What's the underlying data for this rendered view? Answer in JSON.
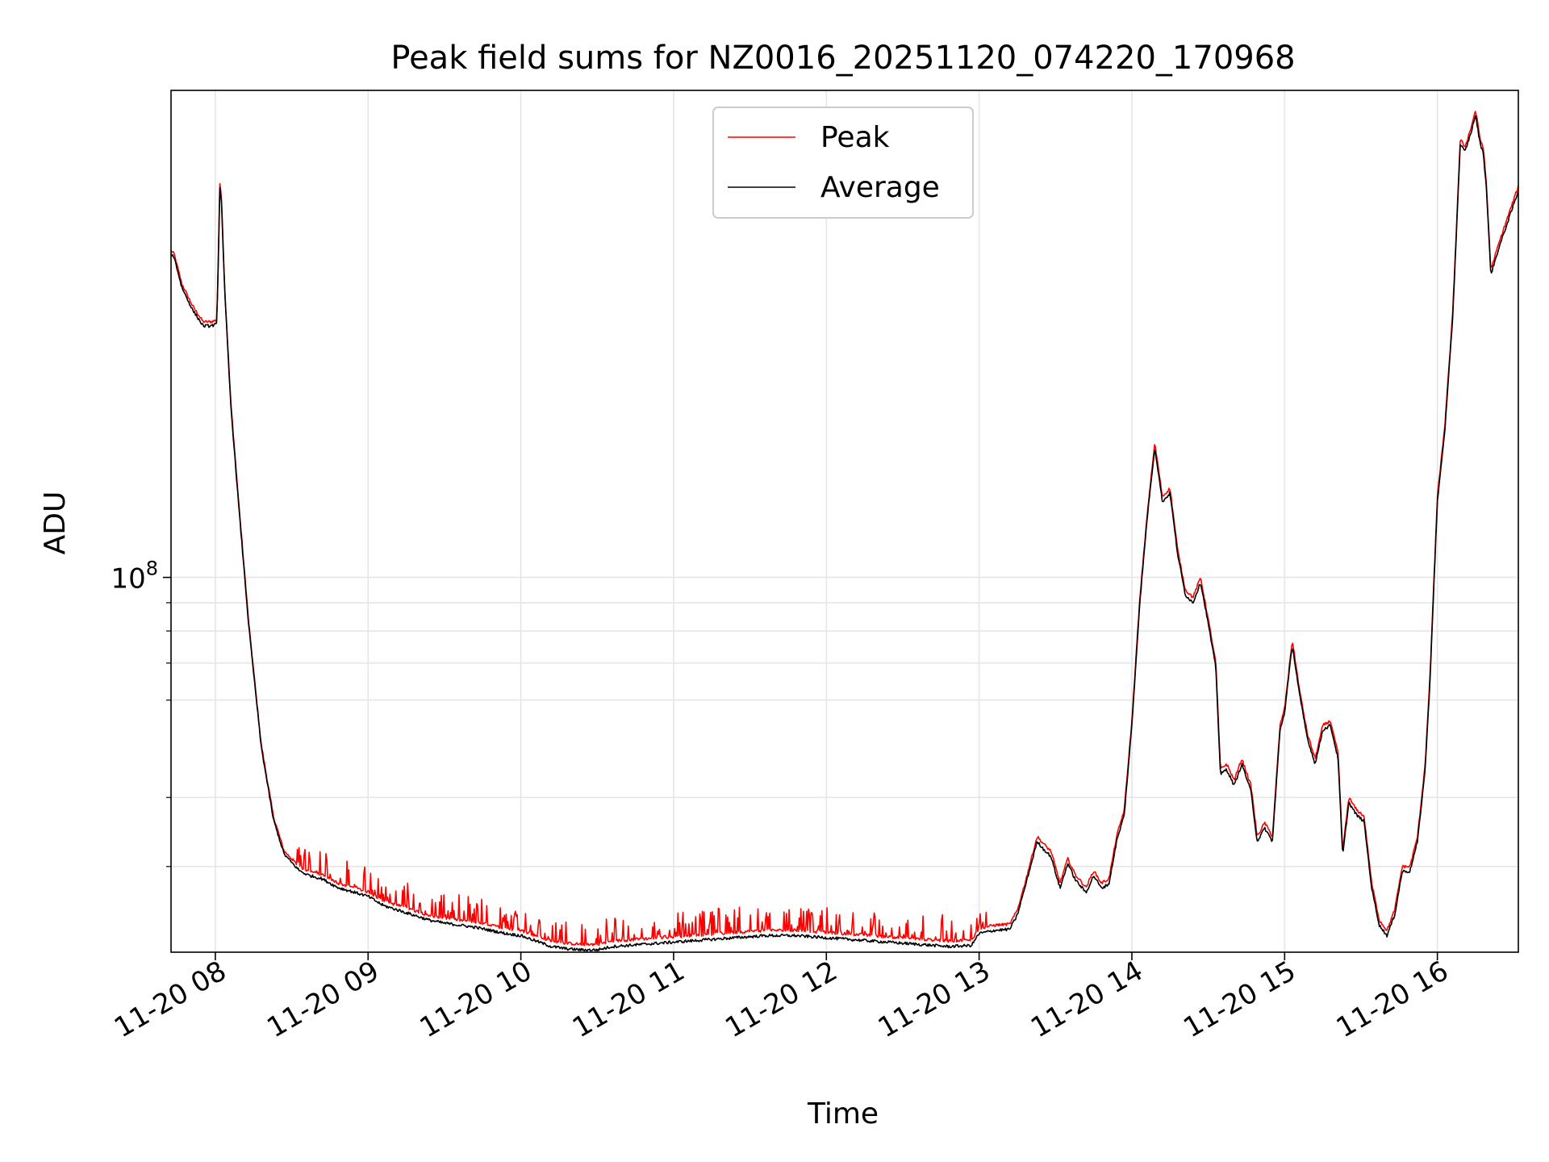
{
  "chart_data": {
    "type": "line",
    "title": "Peak field sums for NZ0016_20251120_074220_170968",
    "xlabel": "Time",
    "ylabel": "ADU",
    "yscale": "log",
    "grid": true,
    "legend_position": "upper center",
    "xlim": [
      7.71,
      16.53
    ],
    "ylim": [
      21000000.0,
      760000000.0
    ],
    "x_unit": "hour of day 2025-11-20",
    "x_ticks": [
      {
        "value": 8,
        "label": "11-20 08"
      },
      {
        "value": 9,
        "label": "11-20 09"
      },
      {
        "value": 10,
        "label": "11-20 10"
      },
      {
        "value": 11,
        "label": "11-20 11"
      },
      {
        "value": 12,
        "label": "11-20 12"
      },
      {
        "value": 13,
        "label": "11-20 13"
      },
      {
        "value": 14,
        "label": "11-20 14"
      },
      {
        "value": 15,
        "label": "11-20 15"
      },
      {
        "value": 16,
        "label": "11-20 16"
      }
    ],
    "y_major_ticks": [
      {
        "value": 100000000,
        "label_base": "10",
        "label_exp": "8"
      }
    ],
    "y_minor_ticks": [
      30000000,
      40000000,
      60000000,
      70000000,
      80000000,
      90000000
    ],
    "series": [
      {
        "name": "Peak",
        "color": "#ff0000",
        "x": [
          7.71,
          7.73,
          7.78,
          7.85,
          7.92,
          7.97,
          8.01,
          8.03,
          8.04,
          8.06,
          8.1,
          8.15,
          8.22,
          8.3,
          8.38,
          8.45,
          8.5,
          8.55,
          8.6,
          8.7,
          8.8,
          8.9,
          9.0,
          9.1,
          9.2,
          9.3,
          9.4,
          9.5,
          9.6,
          9.7,
          9.8,
          9.9,
          10.0,
          10.1,
          10.2,
          10.3,
          10.4,
          10.5,
          10.6,
          10.8,
          11.0,
          11.2,
          11.4,
          11.6,
          11.8,
          12.0,
          12.2,
          12.4,
          12.6,
          12.8,
          12.95,
          13.0,
          13.1,
          13.2,
          13.25,
          13.3,
          13.38,
          13.42,
          13.47,
          13.53,
          13.58,
          13.63,
          13.7,
          13.75,
          13.8,
          13.85,
          13.9,
          13.95,
          14.0,
          14.05,
          14.1,
          14.15,
          14.2,
          14.25,
          14.3,
          14.35,
          14.4,
          14.45,
          14.5,
          14.55,
          14.58,
          14.62,
          14.67,
          14.72,
          14.78,
          14.82,
          14.87,
          14.92,
          14.97,
          15.0,
          15.05,
          15.1,
          15.15,
          15.2,
          15.25,
          15.3,
          15.35,
          15.38,
          15.42,
          15.47,
          15.52,
          15.57,
          15.62,
          15.67,
          15.72,
          15.77,
          15.82,
          15.87,
          15.92,
          15.95,
          16.0,
          16.05,
          16.1,
          16.15,
          16.18,
          16.22,
          16.25,
          16.28,
          16.3,
          16.32,
          16.35,
          16.4,
          16.45,
          16.53
        ],
        "values": [
          390000000,
          385000000,
          340000000,
          310000000,
          290000000,
          290000000,
          292000000,
          520000000,
          490000000,
          340000000,
          210000000,
          140000000,
          82000000,
          50000000,
          37000000,
          32000000,
          31000000,
          30000000,
          29500000,
          29000000,
          28000000,
          27500000,
          27000000,
          26000000,
          25500000,
          25000000,
          24500000,
          24200000,
          24000000,
          23800000,
          23500000,
          23200000,
          23000000,
          22500000,
          22000000,
          21800000,
          21700000,
          21700000,
          22000000,
          22200000,
          22400000,
          22600000,
          22800000,
          23000000,
          23000000,
          22800000,
          22600000,
          22400000,
          22200000,
          22000000,
          22100000,
          23200000,
          23500000,
          23600000,
          25000000,
          28000000,
          34000000,
          33000000,
          32000000,
          28000000,
          31000000,
          29000000,
          27500000,
          29500000,
          28000000,
          28500000,
          34000000,
          38000000,
          55000000,
          90000000,
          130000000,
          175000000,
          140000000,
          145000000,
          112000000,
          95000000,
          92000000,
          100000000,
          84000000,
          70000000,
          45000000,
          46000000,
          43000000,
          47000000,
          42000000,
          34000000,
          36000000,
          34000000,
          54000000,
          58000000,
          77000000,
          62000000,
          52000000,
          47000000,
          54000000,
          55000000,
          48000000,
          32000000,
          40000000,
          38000000,
          37000000,
          28000000,
          24000000,
          23000000,
          25000000,
          30000000,
          30000000,
          34000000,
          46000000,
          65000000,
          140000000,
          190000000,
          300000000,
          620000000,
          600000000,
          650000000,
          700000000,
          620000000,
          600000000,
          520000000,
          360000000,
          400000000,
          440000000,
          510000000
        ],
        "noise_spikes": {
          "from": 8.5,
          "to": 13.05,
          "max_ratio": 1.11
        }
      },
      {
        "name": "Average",
        "color": "#000000",
        "x": [
          7.71,
          7.73,
          7.78,
          7.85,
          7.92,
          7.97,
          8.01,
          8.03,
          8.04,
          8.06,
          8.1,
          8.15,
          8.22,
          8.3,
          8.38,
          8.45,
          8.5,
          8.55,
          8.6,
          8.7,
          8.8,
          8.9,
          9.0,
          9.1,
          9.2,
          9.3,
          9.4,
          9.5,
          9.6,
          9.7,
          9.8,
          9.9,
          10.0,
          10.1,
          10.2,
          10.3,
          10.4,
          10.5,
          10.6,
          10.8,
          11.0,
          11.2,
          11.4,
          11.6,
          11.8,
          12.0,
          12.2,
          12.4,
          12.6,
          12.8,
          12.95,
          13.0,
          13.1,
          13.2,
          13.25,
          13.3,
          13.38,
          13.42,
          13.47,
          13.53,
          13.58,
          13.63,
          13.7,
          13.75,
          13.8,
          13.85,
          13.9,
          13.95,
          14.0,
          14.05,
          14.1,
          14.15,
          14.2,
          14.25,
          14.3,
          14.35,
          14.4,
          14.45,
          14.5,
          14.55,
          14.58,
          14.62,
          14.67,
          14.72,
          14.78,
          14.82,
          14.87,
          14.92,
          14.97,
          15.0,
          15.05,
          15.1,
          15.15,
          15.2,
          15.25,
          15.3,
          15.35,
          15.38,
          15.42,
          15.47,
          15.52,
          15.57,
          15.62,
          15.67,
          15.72,
          15.77,
          15.82,
          15.87,
          15.92,
          15.95,
          16.0,
          16.05,
          16.1,
          16.15,
          16.18,
          16.22,
          16.25,
          16.28,
          16.3,
          16.32,
          16.35,
          16.4,
          16.45,
          16.53
        ],
        "values": [
          385000000,
          380000000,
          335000000,
          305000000,
          285000000,
          285000000,
          287000000,
          510000000,
          480000000,
          335000000,
          207000000,
          138000000,
          81000000,
          49500000,
          36500000,
          31600000,
          30500000,
          29500000,
          29000000,
          28500000,
          27500000,
          27000000,
          26500000,
          25500000,
          25000000,
          24500000,
          24000000,
          23700000,
          23500000,
          23300000,
          23000000,
          22700000,
          22500000,
          22000000,
          21500000,
          21300000,
          21200000,
          21200000,
          21500000,
          21700000,
          21900000,
          22100000,
          22300000,
          22500000,
          22500000,
          22300000,
          22100000,
          21900000,
          21700000,
          21500000,
          21600000,
          22700000,
          23000000,
          23100000,
          24500000,
          27500000,
          33300000,
          32300000,
          31300000,
          27400000,
          30400000,
          28400000,
          26900000,
          28900000,
          27400000,
          27900000,
          33300000,
          37200000,
          54000000,
          88500000,
          128000000,
          172000000,
          137000000,
          142000000,
          110000000,
          93000000,
          90000000,
          98000000,
          82500000,
          68500000,
          44000000,
          45000000,
          42000000,
          46000000,
          41000000,
          33300000,
          35200000,
          33300000,
          53000000,
          57000000,
          75500000,
          60800000,
          51000000,
          46000000,
          53000000,
          54000000,
          47000000,
          31300000,
          39200000,
          37200000,
          36200000,
          27400000,
          23500000,
          22500000,
          24500000,
          29400000,
          29400000,
          33300000,
          45000000,
          63700000,
          137000000,
          186000000,
          294000000,
          608000000,
          588000000,
          637000000,
          686000000,
          608000000,
          588000000,
          510000000,
          353000000,
          392000000,
          431000000,
          500000000
        ]
      }
    ]
  }
}
